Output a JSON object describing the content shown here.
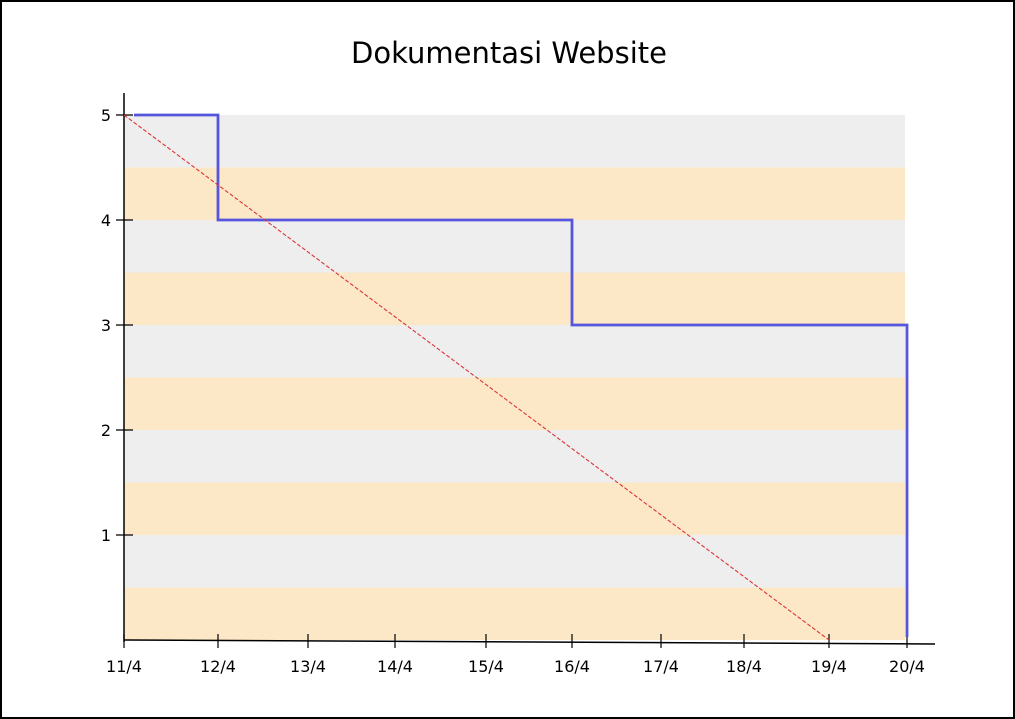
{
  "chart_data": {
    "type": "line",
    "title": "Dokumentasi Website",
    "xlabel": "",
    "ylabel": "",
    "x_tick_labels": [
      "11/4",
      "12/4",
      "13/4",
      "14/4",
      "15/4",
      "16/4",
      "17/4",
      "18/4",
      "19/4",
      "20/4"
    ],
    "y_ticks": [
      1,
      2,
      3,
      4,
      5
    ],
    "ylim": [
      0,
      5
    ],
    "xlim": [
      "11/4",
      "20/4"
    ],
    "grid": false,
    "background_bands": {
      "step": 0.5,
      "colors": [
        "#fce8c6",
        "#eeeeee"
      ]
    },
    "series": [
      {
        "style": "step",
        "color": "#5555dd",
        "x": [
          "11/4",
          "12/4",
          "12/4",
          "16/4",
          "16/4",
          "20/4",
          "20/4"
        ],
        "y": [
          5,
          5,
          4,
          4,
          3,
          3,
          0
        ]
      },
      {
        "style": "dashed",
        "color": "#dd3333",
        "x": [
          "11/4",
          "19/4"
        ],
        "y": [
          5,
          0
        ]
      }
    ]
  }
}
